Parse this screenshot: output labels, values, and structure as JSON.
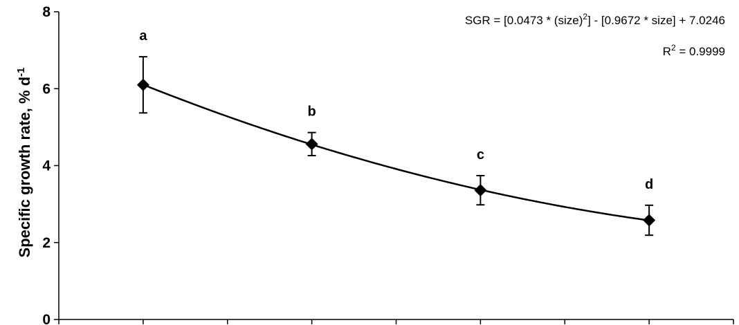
{
  "chart_data": {
    "type": "scatter",
    "title": "",
    "xlabel": "",
    "ylabel": "Specific growth rate, % d",
    "ylabel_superscript": "-1",
    "ylim": [
      0,
      8
    ],
    "yticks": [
      0,
      2,
      4,
      6,
      8
    ],
    "xlim": [
      0,
      4
    ],
    "grid": false,
    "legend": "none",
    "series": [
      {
        "x": [
          0.5,
          1.5,
          2.5,
          3.5
        ],
        "values": [
          6.1,
          4.56,
          3.36,
          2.58
        ],
        "error": [
          0.73,
          0.3,
          0.38,
          0.39
        ],
        "letters": [
          "a",
          "b",
          "c",
          "d"
        ],
        "marker": "diamond",
        "color": "#000000"
      }
    ],
    "trendline": {
      "type": "polynomial",
      "color": "#000000"
    },
    "annotations": {
      "equation_prefix": "SGR = [0.0473 * (size)",
      "equation_sup": "2",
      "equation_suffix": "]  - [0.9672 * size] + 7.0246",
      "r2_prefix": "R",
      "r2_sup": "2",
      "r2_suffix": " = 0.9999"
    }
  }
}
